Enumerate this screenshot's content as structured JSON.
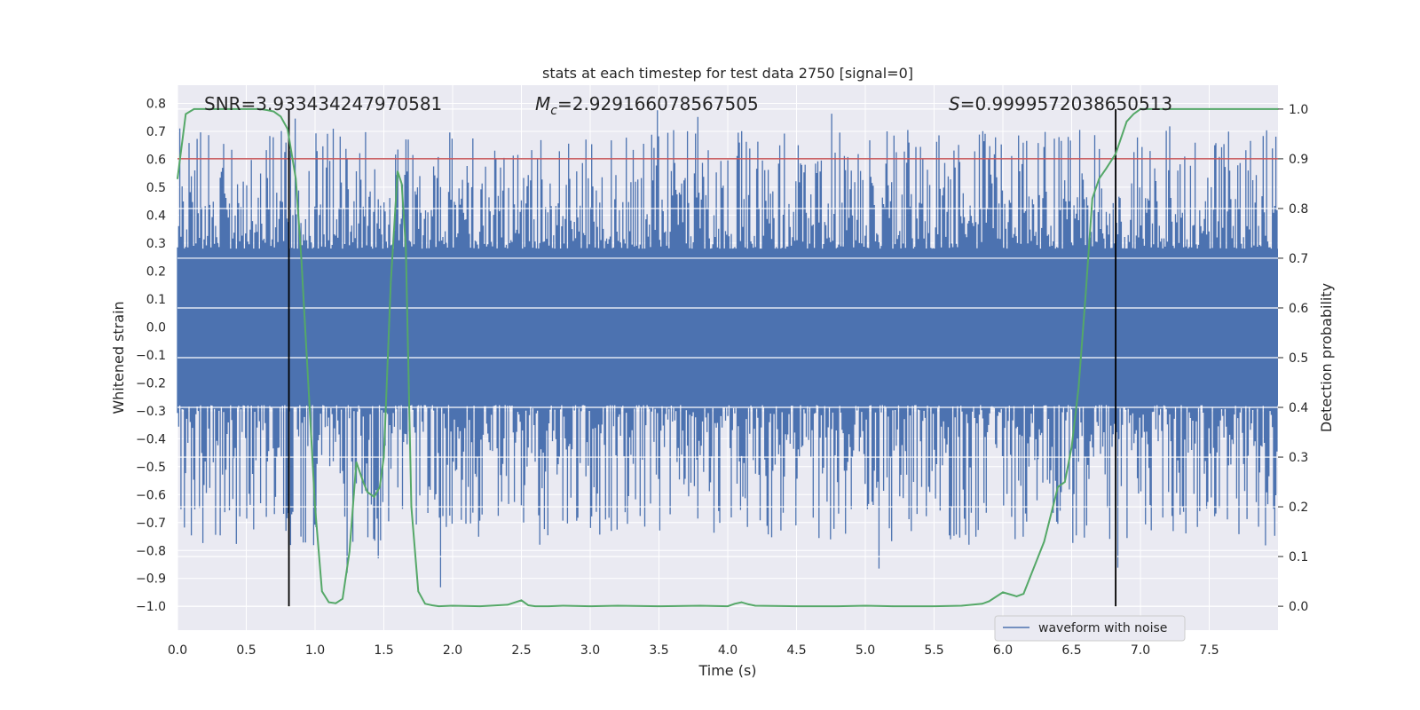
{
  "chart_data": {
    "type": "line",
    "title": "stats at each timestep for test data 2750 [signal=0]",
    "xlabel": "Time (s)",
    "ylabel": "Whitened strain",
    "ylabel_right": "Detection probability",
    "xlim": [
      0.0,
      8.0
    ],
    "ylim": [
      -1.085,
      0.865
    ],
    "ylim_right": [
      -0.048,
      1.048
    ],
    "x_ticks": [
      "0.0",
      "0.5",
      "1.0",
      "1.5",
      "2.0",
      "2.5",
      "3.0",
      "3.5",
      "4.0",
      "4.5",
      "5.0",
      "5.5",
      "6.0",
      "6.5",
      "7.0",
      "7.5"
    ],
    "y_ticks": [
      "0.8",
      "0.7",
      "0.6",
      "0.5",
      "0.4",
      "0.3",
      "0.2",
      "0.1",
      "0.0",
      "−0.1",
      "−0.2",
      "−0.3",
      "−0.4",
      "−0.5",
      "−0.6",
      "−0.7",
      "−0.8",
      "−0.9",
      "−1.0"
    ],
    "y_ticks_right": [
      "1.0",
      "0.9",
      "0.8",
      "0.7",
      "0.6",
      "0.5",
      "0.4",
      "0.3",
      "0.2",
      "0.1",
      "0.0"
    ],
    "annotations": {
      "snr": "SNR=3.933434247970581",
      "mc_symbol": "M",
      "mc_sub": "c",
      "mc_value": "=2.929166078567505",
      "s_symbol": "S",
      "s_value": "=0.9999572038650513"
    },
    "threshold": {
      "value": 0.9,
      "color": "#c44e52"
    },
    "vertical_markers": [
      0.81,
      6.82
    ],
    "legend": [
      {
        "label": "waveform with noise",
        "color": "#4c72b0"
      }
    ],
    "series": [
      {
        "name": "waveform with noise",
        "color": "#4c72b0",
        "axis": "left",
        "noise_band": [
          -0.28,
          0.28
        ],
        "peak_range": [
          -1.0,
          0.78
        ]
      },
      {
        "name": "detection probability",
        "color": "#55a868",
        "axis": "right",
        "x": [
          0.0,
          0.06,
          0.12,
          0.2,
          0.3,
          0.4,
          0.5,
          0.6,
          0.65,
          0.7,
          0.75,
          0.8,
          0.86,
          0.9,
          0.95,
          1.0,
          1.05,
          1.1,
          1.15,
          1.2,
          1.25,
          1.3,
          1.35,
          1.38,
          1.43,
          1.47,
          1.5,
          1.55,
          1.6,
          1.63,
          1.66,
          1.7,
          1.75,
          1.8,
          1.85,
          1.9,
          2.0,
          2.2,
          2.4,
          2.5,
          2.55,
          2.6,
          2.7,
          2.8,
          3.0,
          3.2,
          3.5,
          3.8,
          4.0,
          4.05,
          4.1,
          4.15,
          4.2,
          4.5,
          4.8,
          5.0,
          5.2,
          5.5,
          5.7,
          5.85,
          5.9,
          6.0,
          6.1,
          6.15,
          6.2,
          6.3,
          6.4,
          6.45,
          6.5,
          6.55,
          6.6,
          6.65,
          6.7,
          6.75,
          6.82,
          6.9,
          6.95,
          7.0,
          7.05,
          7.2,
          7.5,
          8.0
        ],
        "values": [
          0.86,
          0.99,
          1.0,
          1.0,
          1.0,
          1.0,
          1.0,
          1.0,
          0.998,
          0.995,
          0.985,
          0.96,
          0.86,
          0.7,
          0.45,
          0.2,
          0.03,
          0.008,
          0.006,
          0.015,
          0.11,
          0.29,
          0.25,
          0.23,
          0.22,
          0.24,
          0.3,
          0.65,
          0.875,
          0.85,
          0.72,
          0.2,
          0.03,
          0.005,
          0.002,
          0.0,
          0.001,
          0.0,
          0.003,
          0.012,
          0.002,
          0.0,
          0.0,
          0.001,
          0.0,
          0.001,
          0.0,
          0.001,
          0.0,
          0.005,
          0.008,
          0.004,
          0.001,
          0.0,
          0.0,
          0.001,
          0.0,
          0.0,
          0.001,
          0.005,
          0.01,
          0.028,
          0.02,
          0.025,
          0.06,
          0.13,
          0.24,
          0.25,
          0.32,
          0.44,
          0.62,
          0.82,
          0.86,
          0.88,
          0.91,
          0.975,
          0.99,
          1.0,
          1.0,
          1.0,
          1.0,
          1.0
        ]
      }
    ]
  }
}
